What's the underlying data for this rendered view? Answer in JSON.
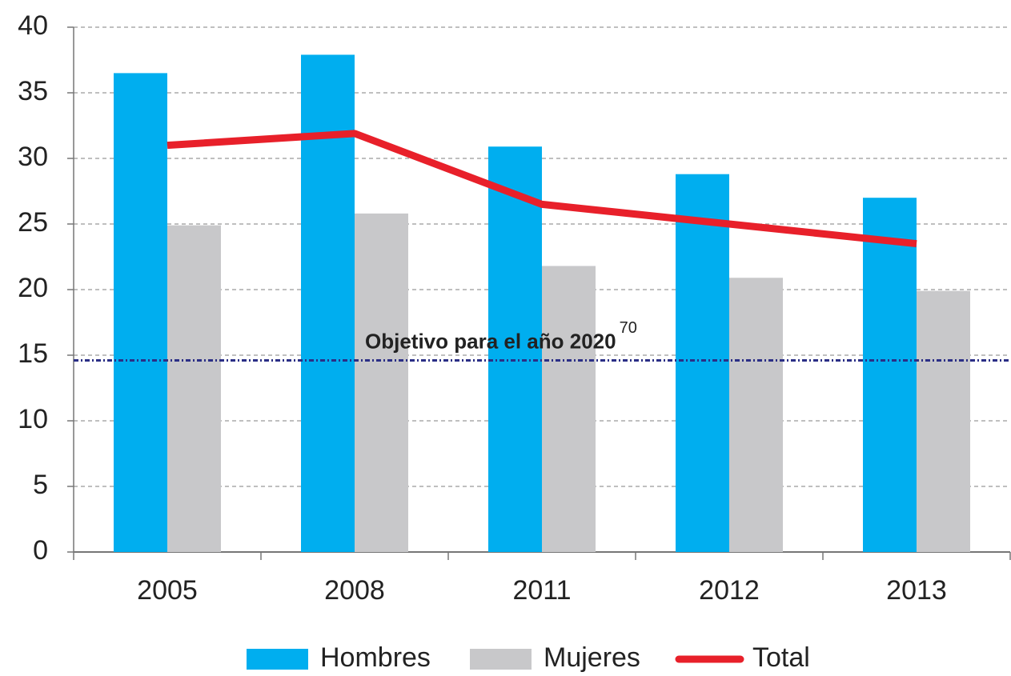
{
  "chart_data": {
    "type": "bar",
    "categories": [
      "2005",
      "2008",
      "2011",
      "2012",
      "2013"
    ],
    "series": [
      {
        "name": "Hombres",
        "color": "#00aeef",
        "values": [
          36.5,
          37.9,
          30.9,
          28.8,
          27.0
        ]
      },
      {
        "name": "Mujeres",
        "color": "#c8c8ca",
        "values": [
          24.9,
          25.8,
          21.8,
          20.9,
          19.9
        ]
      },
      {
        "name": "Total",
        "type": "line",
        "color": "#e8202a",
        "values": [
          31.0,
          31.9,
          26.5,
          25.0,
          23.5
        ]
      }
    ],
    "target": {
      "value": 14.6,
      "label": "Objetivo para el año 2020",
      "superscript": "70",
      "color": "#2b2f86"
    },
    "ylim": [
      0,
      40
    ],
    "yticks": [
      0,
      5,
      10,
      15,
      20,
      25,
      30,
      35,
      40
    ],
    "grid": true,
    "legend": "bottom"
  }
}
